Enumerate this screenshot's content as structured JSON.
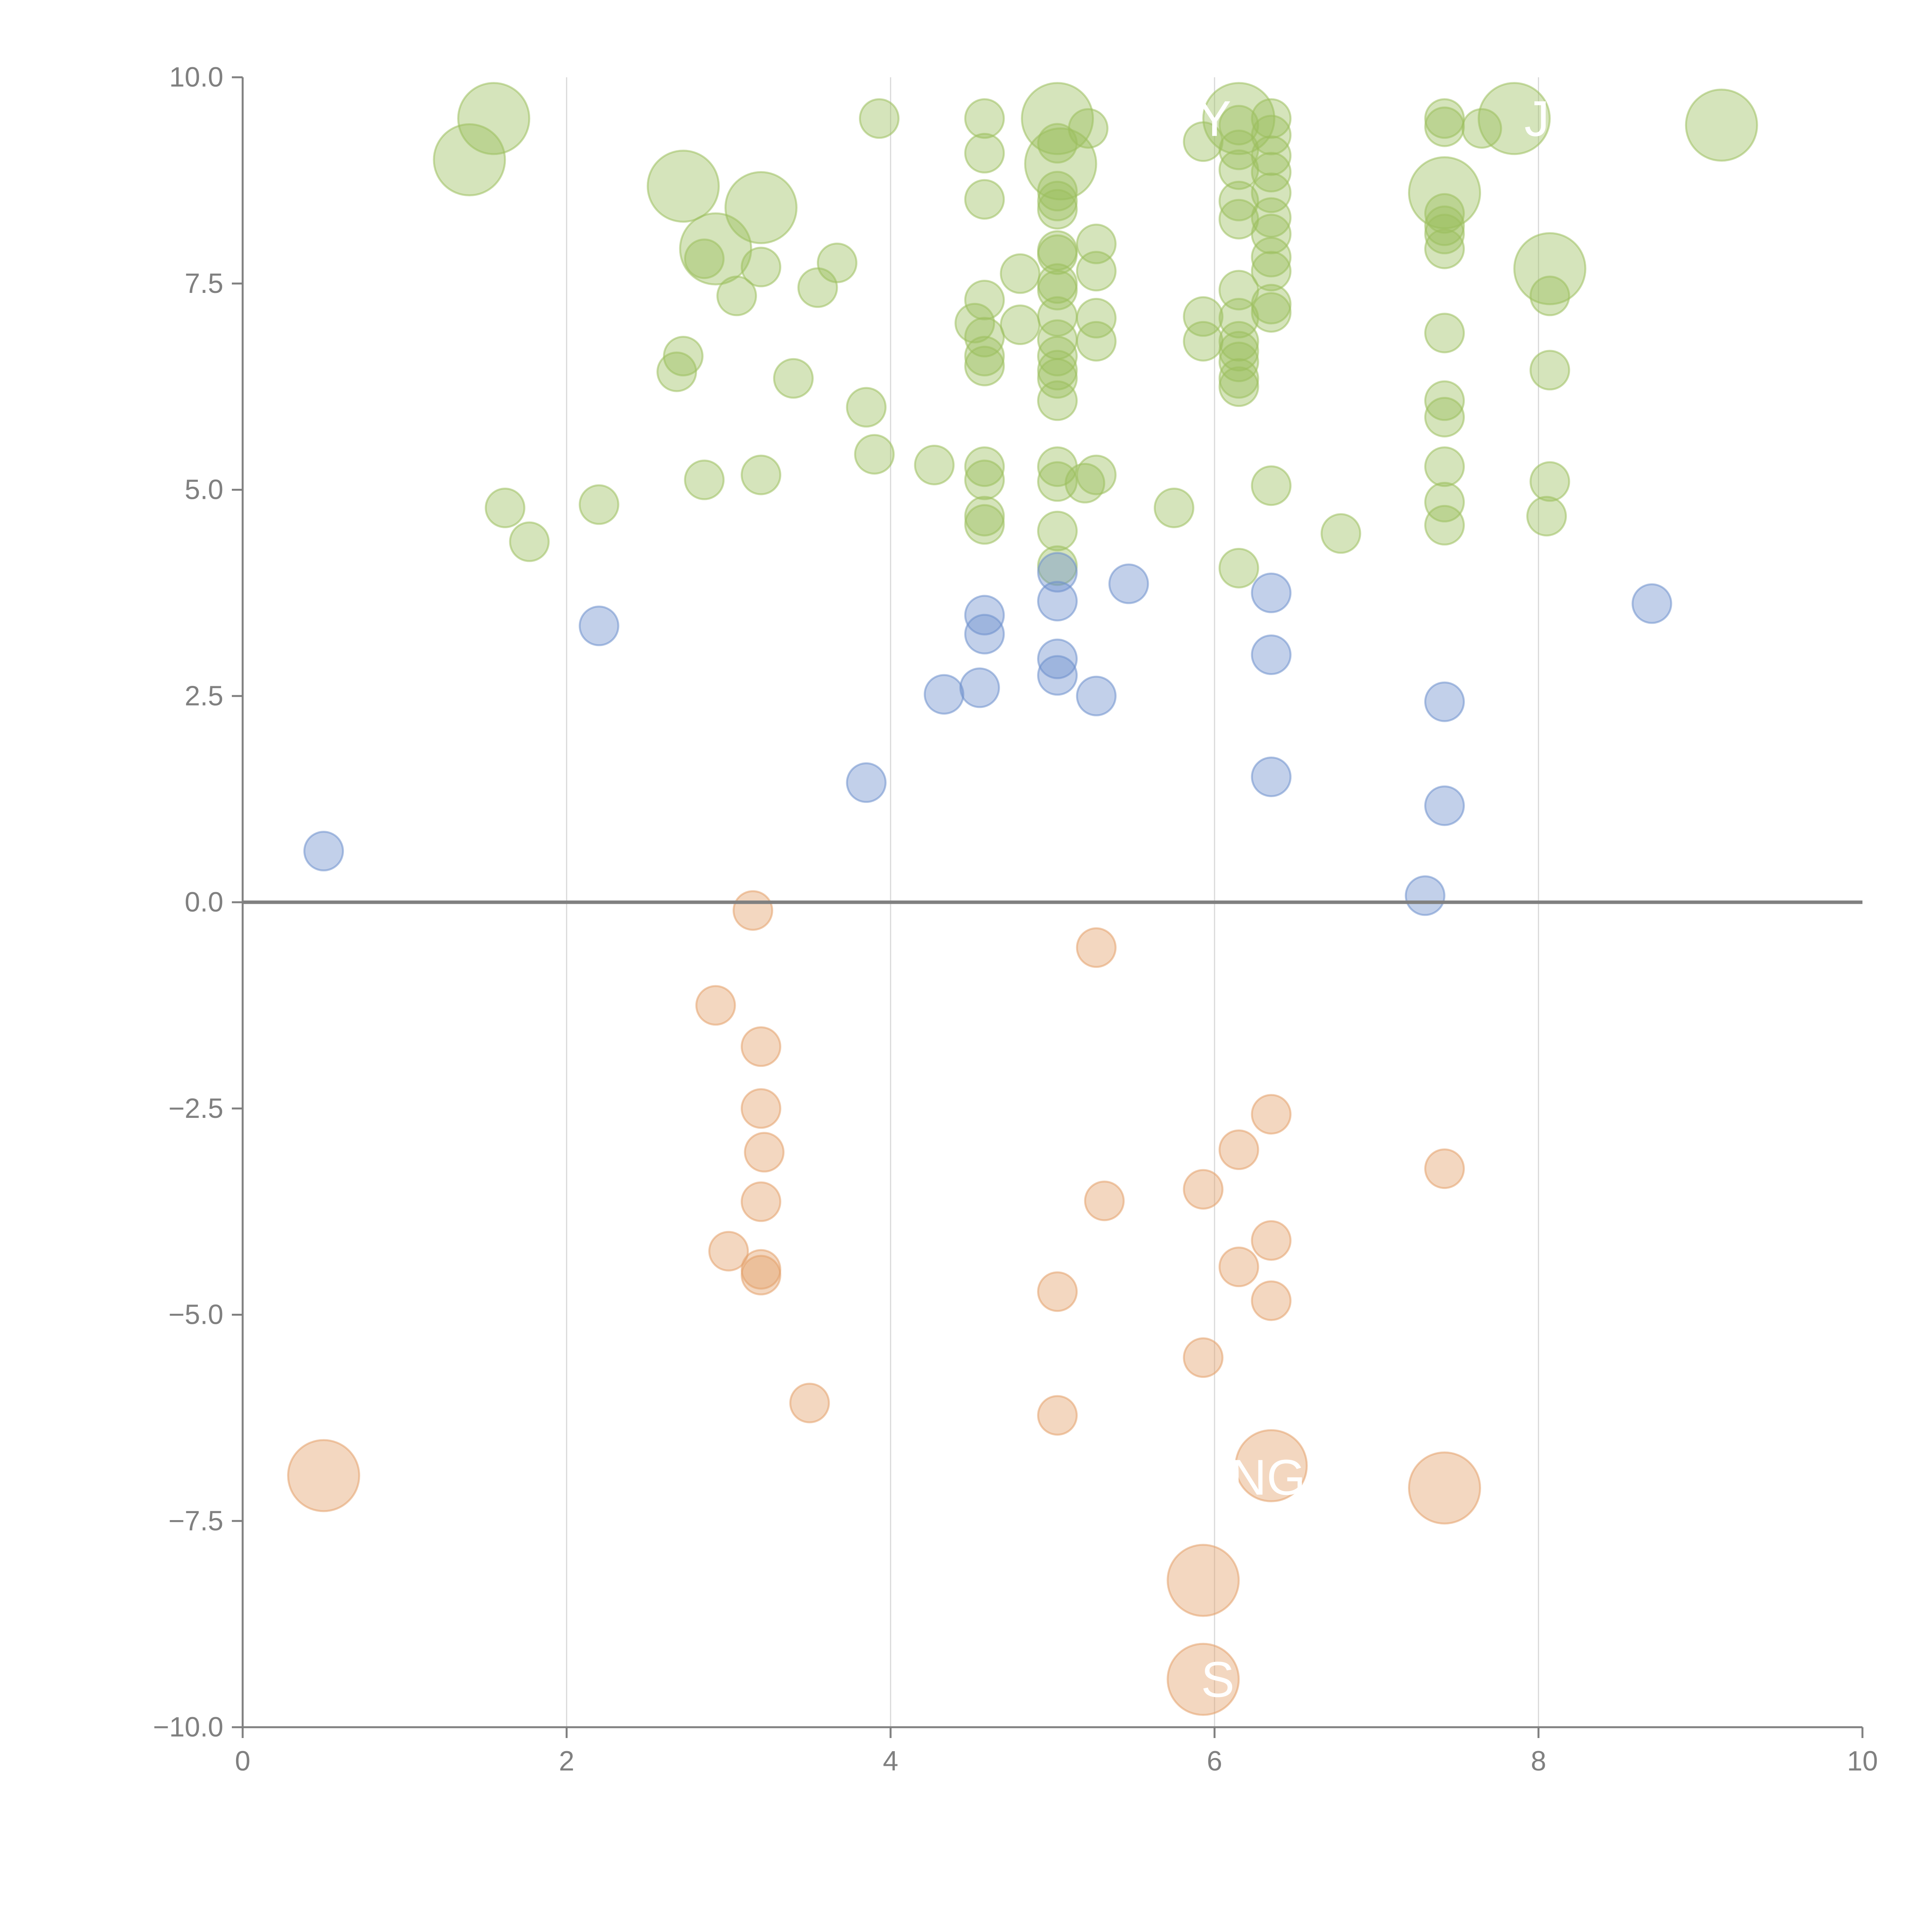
{
  "chart_data": {
    "type": "scatter",
    "title": "",
    "xlabel": "",
    "ylabel": "",
    "xlim": [
      0,
      10
    ],
    "ylim": [
      -10,
      10
    ],
    "x_ticks": [
      "0",
      "2",
      "4",
      "6",
      "8",
      "10"
    ],
    "x_tick_values": [
      0,
      2,
      4,
      6,
      8,
      10
    ],
    "y_ticks": [
      "10.0",
      "7.5",
      "5.0",
      "2.5",
      "0.0",
      "−2.5",
      "−5.0",
      "−7.5",
      "−10.0"
    ],
    "y_tick_values": [
      10,
      7.5,
      5,
      2.5,
      0,
      -2.5,
      -5,
      -7.5,
      -10
    ],
    "vertical_gridlines": [
      2,
      4,
      6,
      8
    ],
    "zero_line": 0,
    "colors": {
      "positive": "#9cbf5e",
      "neutral": "#6d8fcc",
      "negative": "#e3a06a",
      "axis": "#808080",
      "grid": "#d9d9d9",
      "label": "#ffffff"
    },
    "series": [
      {
        "name": "positive",
        "points": [
          [
            1.55,
            9.5,
            2
          ],
          [
            1.4,
            9.0,
            2
          ],
          [
            2.72,
            8.68,
            2
          ],
          [
            3.2,
            8.42,
            2
          ],
          [
            2.92,
            7.92,
            2
          ],
          [
            5.03,
            9.5,
            2
          ],
          [
            5.05,
            8.95,
            2
          ],
          [
            6.15,
            9.5,
            2
          ],
          [
            7.42,
            8.6,
            2
          ],
          [
            7.85,
            9.5,
            2
          ],
          [
            8.07,
            7.68,
            2
          ],
          [
            9.13,
            9.42,
            2
          ],
          [
            3.93,
            9.5,
            1
          ],
          [
            4.58,
            9.5,
            1
          ],
          [
            4.58,
            9.08,
            1
          ],
          [
            4.58,
            8.52,
            1
          ],
          [
            5.03,
            8.5,
            1
          ],
          [
            5.03,
            8.62,
            1
          ],
          [
            5.03,
            8.4,
            1
          ],
          [
            5.22,
            9.38,
            1
          ],
          [
            5.03,
            9.2,
            1
          ],
          [
            5.93,
            9.22,
            1
          ],
          [
            6.15,
            9.42,
            1
          ],
          [
            6.15,
            9.12,
            1
          ],
          [
            6.15,
            8.88,
            1
          ],
          [
            6.15,
            8.5,
            1
          ],
          [
            6.15,
            8.28,
            1
          ],
          [
            6.35,
            9.5,
            1
          ],
          [
            6.35,
            9.3,
            1
          ],
          [
            6.35,
            9.05,
            1
          ],
          [
            6.35,
            8.85,
            1
          ],
          [
            6.35,
            8.6,
            1
          ],
          [
            6.35,
            8.3,
            1
          ],
          [
            6.35,
            8.1,
            1
          ],
          [
            6.35,
            7.82,
            1
          ],
          [
            6.35,
            7.65,
            1
          ],
          [
            6.35,
            7.25,
            1
          ],
          [
            6.35,
            7.15,
            1
          ],
          [
            7.42,
            9.5,
            1
          ],
          [
            7.42,
            9.4,
            1
          ],
          [
            7.65,
            9.38,
            1
          ],
          [
            7.42,
            8.35,
            1
          ],
          [
            7.42,
            8.2,
            1
          ],
          [
            7.42,
            8.1,
            1
          ],
          [
            7.42,
            7.92,
            1
          ],
          [
            2.85,
            7.8,
            1
          ],
          [
            3.05,
            7.35,
            1
          ],
          [
            3.2,
            7.7,
            1
          ],
          [
            3.55,
            7.45,
            1
          ],
          [
            3.67,
            7.75,
            1
          ],
          [
            2.72,
            6.62,
            1
          ],
          [
            2.68,
            6.43,
            1
          ],
          [
            3.4,
            6.35,
            1
          ],
          [
            3.85,
            6.0,
            1
          ],
          [
            3.9,
            5.43,
            1
          ],
          [
            4.27,
            5.3,
            1
          ],
          [
            4.58,
            7.3,
            1
          ],
          [
            4.52,
            7.02,
            1
          ],
          [
            4.58,
            6.85,
            1
          ],
          [
            4.58,
            6.62,
            1
          ],
          [
            4.58,
            6.5,
            1
          ],
          [
            4.8,
            7.0,
            1
          ],
          [
            4.8,
            7.62,
            1
          ],
          [
            5.03,
            7.9,
            1
          ],
          [
            5.03,
            7.85,
            1
          ],
          [
            5.03,
            7.5,
            1
          ],
          [
            5.03,
            7.42,
            1
          ],
          [
            5.03,
            7.1,
            1
          ],
          [
            5.03,
            6.82,
            1
          ],
          [
            5.03,
            6.62,
            1
          ],
          [
            5.03,
            6.45,
            1
          ],
          [
            5.03,
            6.35,
            1
          ],
          [
            5.03,
            6.08,
            1
          ],
          [
            5.27,
            7.98,
            1
          ],
          [
            5.27,
            7.65,
            1
          ],
          [
            5.27,
            7.08,
            1
          ],
          [
            5.27,
            6.8,
            1
          ],
          [
            5.93,
            7.1,
            1
          ],
          [
            5.93,
            6.8,
            1
          ],
          [
            6.15,
            7.42,
            1
          ],
          [
            6.15,
            7.08,
            1
          ],
          [
            6.15,
            6.8,
            1
          ],
          [
            6.15,
            6.68,
            1
          ],
          [
            6.15,
            6.55,
            1
          ],
          [
            6.15,
            6.35,
            1
          ],
          [
            6.15,
            6.25,
            1
          ],
          [
            7.42,
            6.9,
            1
          ],
          [
            7.42,
            6.08,
            1
          ],
          [
            7.42,
            5.88,
            1
          ],
          [
            8.07,
            7.35,
            1
          ],
          [
            8.07,
            6.45,
            1
          ],
          [
            1.62,
            4.78,
            1
          ],
          [
            1.77,
            4.37,
            1
          ],
          [
            2.2,
            4.82,
            1
          ],
          [
            2.85,
            5.12,
            1
          ],
          [
            3.2,
            5.18,
            1
          ],
          [
            4.58,
            5.28,
            1
          ],
          [
            4.58,
            5.12,
            1
          ],
          [
            4.58,
            4.68,
            1
          ],
          [
            4.58,
            4.58,
            1
          ],
          [
            5.03,
            5.28,
            1
          ],
          [
            5.03,
            5.1,
            1
          ],
          [
            5.03,
            4.5,
            1
          ],
          [
            5.03,
            4.08,
            1
          ],
          [
            5.2,
            5.08,
            1
          ],
          [
            5.27,
            5.18,
            1
          ],
          [
            5.75,
            4.78,
            1
          ],
          [
            6.15,
            4.05,
            1
          ],
          [
            6.35,
            5.05,
            1
          ],
          [
            6.78,
            4.47,
            1
          ],
          [
            7.42,
            5.28,
            1
          ],
          [
            7.42,
            4.85,
            1
          ],
          [
            7.42,
            4.57,
            1
          ],
          [
            8.07,
            5.1,
            1
          ],
          [
            8.05,
            4.68,
            1
          ]
        ]
      },
      {
        "name": "neutral",
        "points": [
          [
            0.5,
            0.62,
            1
          ],
          [
            2.2,
            3.35,
            1
          ],
          [
            3.85,
            1.45,
            1
          ],
          [
            4.33,
            2.52,
            1
          ],
          [
            4.55,
            2.6,
            1
          ],
          [
            4.58,
            3.48,
            1
          ],
          [
            4.58,
            3.25,
            1
          ],
          [
            5.03,
            4.0,
            1
          ],
          [
            5.03,
            3.65,
            1
          ],
          [
            5.03,
            2.95,
            1
          ],
          [
            5.03,
            2.75,
            1
          ],
          [
            5.27,
            2.5,
            1
          ],
          [
            5.47,
            3.86,
            1
          ],
          [
            6.35,
            3.75,
            1
          ],
          [
            6.35,
            3.0,
            1
          ],
          [
            6.35,
            1.52,
            1
          ],
          [
            7.42,
            2.43,
            1
          ],
          [
            7.42,
            1.17,
            1
          ],
          [
            7.3,
            0.08,
            1
          ],
          [
            8.7,
            3.62,
            1
          ]
        ]
      },
      {
        "name": "negative",
        "points": [
          [
            3.15,
            -0.1,
            1
          ],
          [
            5.27,
            -0.55,
            1
          ],
          [
            2.92,
            -1.25,
            1
          ],
          [
            3.2,
            -1.75,
            1
          ],
          [
            3.2,
            -2.5,
            1
          ],
          [
            3.22,
            -3.03,
            1
          ],
          [
            3.2,
            -3.63,
            1
          ],
          [
            3.0,
            -4.23,
            1
          ],
          [
            3.2,
            -4.45,
            1
          ],
          [
            3.2,
            -4.52,
            1
          ],
          [
            3.5,
            -6.07,
            1
          ],
          [
            5.03,
            -4.72,
            1
          ],
          [
            5.03,
            -6.22,
            1
          ],
          [
            5.32,
            -3.62,
            1
          ],
          [
            5.93,
            -3.48,
            1
          ],
          [
            5.93,
            -5.52,
            1
          ],
          [
            6.15,
            -3.0,
            1
          ],
          [
            6.15,
            -4.42,
            1
          ],
          [
            6.35,
            -2.57,
            1
          ],
          [
            6.35,
            -4.1,
            1
          ],
          [
            6.35,
            -4.83,
            1
          ],
          [
            7.42,
            -3.23,
            1
          ],
          [
            0.5,
            -6.95,
            2
          ],
          [
            6.35,
            -6.83,
            2
          ],
          [
            7.42,
            -7.1,
            2
          ],
          [
            5.93,
            -8.22,
            2
          ],
          [
            5.93,
            -9.42,
            2
          ]
        ]
      }
    ],
    "bubble_labels": [
      {
        "text": "Y",
        "x": 6.0,
        "y": 9.5
      },
      {
        "text": "J",
        "x": 7.99,
        "y": 9.5
      },
      {
        "text": "NG",
        "x": 6.33,
        "y": -6.97
      },
      {
        "text": "S",
        "x": 6.02,
        "y": -9.42
      }
    ]
  }
}
